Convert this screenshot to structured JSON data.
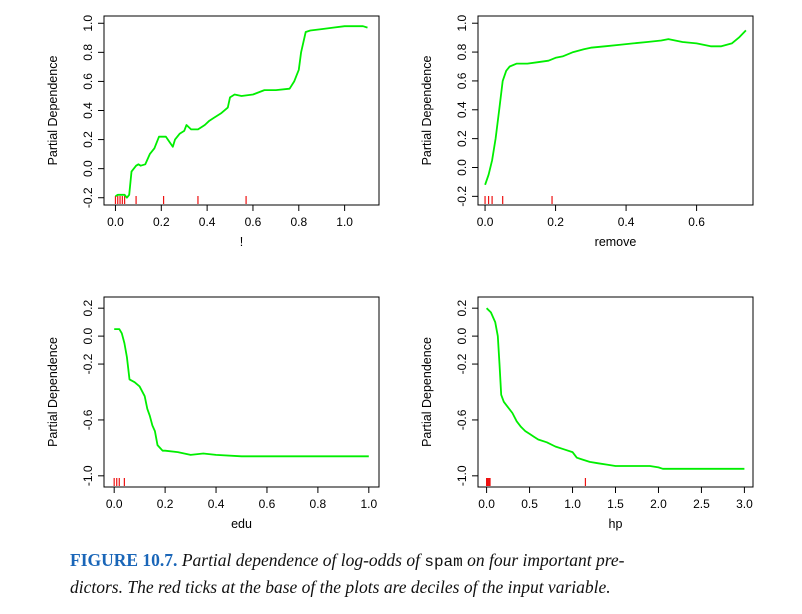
{
  "caption": {
    "label": "FIGURE 10.7.",
    "text_before": "Partial dependence of log-odds of",
    "code": "spam",
    "text_after": "on four important pre-",
    "line2": "dictors. The red ticks at the base of the plots are deciles of the input variable."
  },
  "colors": {
    "curve": "#00ee00",
    "rug": "#ee1111",
    "axis": "#000000"
  },
  "chart_data": [
    {
      "type": "line",
      "xlabel": "!",
      "ylabel": "Partial Dependence",
      "xlim": [
        -0.05,
        1.15
      ],
      "ylim": [
        -0.25,
        1.05
      ],
      "xticks": [
        0.0,
        0.2,
        0.4,
        0.6,
        0.8,
        1.0
      ],
      "xtick_labels": [
        "0.0",
        "0.2",
        "0.4",
        "0.6",
        "0.8",
        "1.0"
      ],
      "yticks": [
        -0.2,
        0.0,
        0.2,
        0.4,
        0.6,
        0.8,
        1.0
      ],
      "ytick_labels": [
        "-0.2",
        "0.0",
        "0.2",
        "0.4",
        "0.6",
        "0.8",
        "1.0"
      ],
      "rug": [
        0.0,
        0.01,
        0.02,
        0.03,
        0.04,
        0.09,
        0.21,
        0.36,
        0.57
      ],
      "series": [
        {
          "x": [
            0.0,
            0.01,
            0.04,
            0.05,
            0.06,
            0.07,
            0.09,
            0.1,
            0.11,
            0.13,
            0.15,
            0.17,
            0.19,
            0.22,
            0.25,
            0.26,
            0.28,
            0.3,
            0.31,
            0.33,
            0.36,
            0.39,
            0.41,
            0.43,
            0.46,
            0.49,
            0.5,
            0.52,
            0.55,
            0.6,
            0.65,
            0.7,
            0.76,
            0.78,
            0.79,
            0.8,
            0.81,
            0.83,
            0.85,
            0.9,
            0.95,
            1.0,
            1.08,
            1.1
          ],
          "y": [
            -0.19,
            -0.18,
            -0.18,
            -0.2,
            -0.18,
            -0.02,
            0.02,
            0.03,
            0.02,
            0.03,
            0.1,
            0.14,
            0.22,
            0.22,
            0.15,
            0.2,
            0.24,
            0.26,
            0.3,
            0.27,
            0.27,
            0.3,
            0.33,
            0.35,
            0.38,
            0.42,
            0.49,
            0.51,
            0.5,
            0.51,
            0.54,
            0.54,
            0.55,
            0.6,
            0.64,
            0.68,
            0.8,
            0.94,
            0.95,
            0.96,
            0.97,
            0.98,
            0.98,
            0.97
          ]
        }
      ]
    },
    {
      "type": "line",
      "xlabel": "remove",
      "ylabel": "Partial Dependence",
      "xlim": [
        -0.02,
        0.76
      ],
      "ylim": [
        -0.26,
        1.05
      ],
      "xticks": [
        0.0,
        0.2,
        0.4,
        0.6
      ],
      "xtick_labels": [
        "0.0",
        "0.2",
        "0.4",
        "0.6"
      ],
      "yticks": [
        -0.2,
        0.0,
        0.2,
        0.4,
        0.6,
        0.8,
        1.0
      ],
      "ytick_labels": [
        "-0.2",
        "0.0",
        "0.2",
        "0.4",
        "0.6",
        "0.8",
        "1.0"
      ],
      "rug": [
        0.0,
        0.01,
        0.02,
        0.05,
        0.19
      ],
      "series": [
        {
          "x": [
            0.0,
            0.01,
            0.02,
            0.03,
            0.04,
            0.05,
            0.06,
            0.07,
            0.09,
            0.12,
            0.15,
            0.18,
            0.2,
            0.22,
            0.25,
            0.28,
            0.3,
            0.34,
            0.38,
            0.42,
            0.46,
            0.5,
            0.52,
            0.56,
            0.6,
            0.64,
            0.67,
            0.7,
            0.72,
            0.74
          ],
          "y": [
            -0.12,
            -0.05,
            0.05,
            0.2,
            0.4,
            0.6,
            0.67,
            0.7,
            0.72,
            0.72,
            0.73,
            0.74,
            0.76,
            0.77,
            0.8,
            0.82,
            0.83,
            0.84,
            0.85,
            0.86,
            0.87,
            0.88,
            0.89,
            0.87,
            0.86,
            0.84,
            0.84,
            0.86,
            0.9,
            0.95
          ]
        }
      ]
    },
    {
      "type": "line",
      "xlabel": "edu",
      "ylabel": "Partial Dependence",
      "xlim": [
        -0.04,
        1.04
      ],
      "ylim": [
        -1.08,
        0.28
      ],
      "xticks": [
        0.0,
        0.2,
        0.4,
        0.6,
        0.8,
        1.0
      ],
      "xtick_labels": [
        "0.0",
        "0.2",
        "0.4",
        "0.6",
        "0.8",
        "1.0"
      ],
      "yticks": [
        -1.0,
        -0.6,
        -0.2,
        0.0,
        0.2
      ],
      "ytick_labels": [
        "-1.0",
        "-0.6",
        "-0.2",
        "0.0",
        "0.2"
      ],
      "rug": [
        0.0,
        0.01,
        0.02,
        0.04
      ],
      "series": [
        {
          "x": [
            0.0,
            0.02,
            0.03,
            0.04,
            0.05,
            0.06,
            0.08,
            0.1,
            0.12,
            0.13,
            0.14,
            0.15,
            0.16,
            0.17,
            0.18,
            0.19,
            0.2,
            0.25,
            0.3,
            0.35,
            0.4,
            0.5,
            0.6,
            0.8,
            1.0
          ],
          "y": [
            0.05,
            0.05,
            0.02,
            -0.05,
            -0.15,
            -0.31,
            -0.33,
            -0.36,
            -0.43,
            -0.52,
            -0.57,
            -0.64,
            -0.68,
            -0.78,
            -0.8,
            -0.82,
            -0.82,
            -0.83,
            -0.85,
            -0.84,
            -0.85,
            -0.86,
            -0.86,
            -0.86,
            -0.86
          ]
        }
      ]
    },
    {
      "type": "line",
      "xlabel": "hp",
      "ylabel": "Partial Dependence",
      "xlim": [
        -0.1,
        3.1
      ],
      "ylim": [
        -1.08,
        0.28
      ],
      "xticks": [
        0.0,
        0.5,
        1.0,
        1.5,
        2.0,
        2.5,
        3.0
      ],
      "xtick_labels": [
        "0.0",
        "0.5",
        "1.0",
        "1.5",
        "2.0",
        "2.5",
        "3.0"
      ],
      "yticks": [
        -1.0,
        -0.6,
        -0.2,
        0.0,
        0.2
      ],
      "ytick_labels": [
        "-1.0",
        "-0.6",
        "-0.2",
        "0.0",
        "0.2"
      ],
      "rug": [
        0.0,
        0.01,
        0.02,
        0.03,
        0.04,
        1.15
      ],
      "series": [
        {
          "x": [
            0.0,
            0.05,
            0.1,
            0.13,
            0.15,
            0.17,
            0.2,
            0.25,
            0.3,
            0.35,
            0.4,
            0.45,
            0.5,
            0.55,
            0.6,
            0.7,
            0.8,
            0.9,
            1.0,
            1.05,
            1.1,
            1.2,
            1.3,
            1.4,
            1.5,
            1.6,
            1.7,
            1.8,
            1.9,
            2.0,
            2.05,
            2.1,
            2.5,
            3.0
          ],
          "y": [
            0.2,
            0.17,
            0.1,
            0.0,
            -0.2,
            -0.42,
            -0.47,
            -0.51,
            -0.55,
            -0.61,
            -0.65,
            -0.68,
            -0.7,
            -0.72,
            -0.74,
            -0.76,
            -0.79,
            -0.81,
            -0.83,
            -0.87,
            -0.88,
            -0.9,
            -0.91,
            -0.92,
            -0.93,
            -0.93,
            -0.93,
            -0.93,
            -0.93,
            -0.94,
            -0.95,
            -0.95,
            -0.95,
            -0.95
          ]
        }
      ]
    }
  ]
}
